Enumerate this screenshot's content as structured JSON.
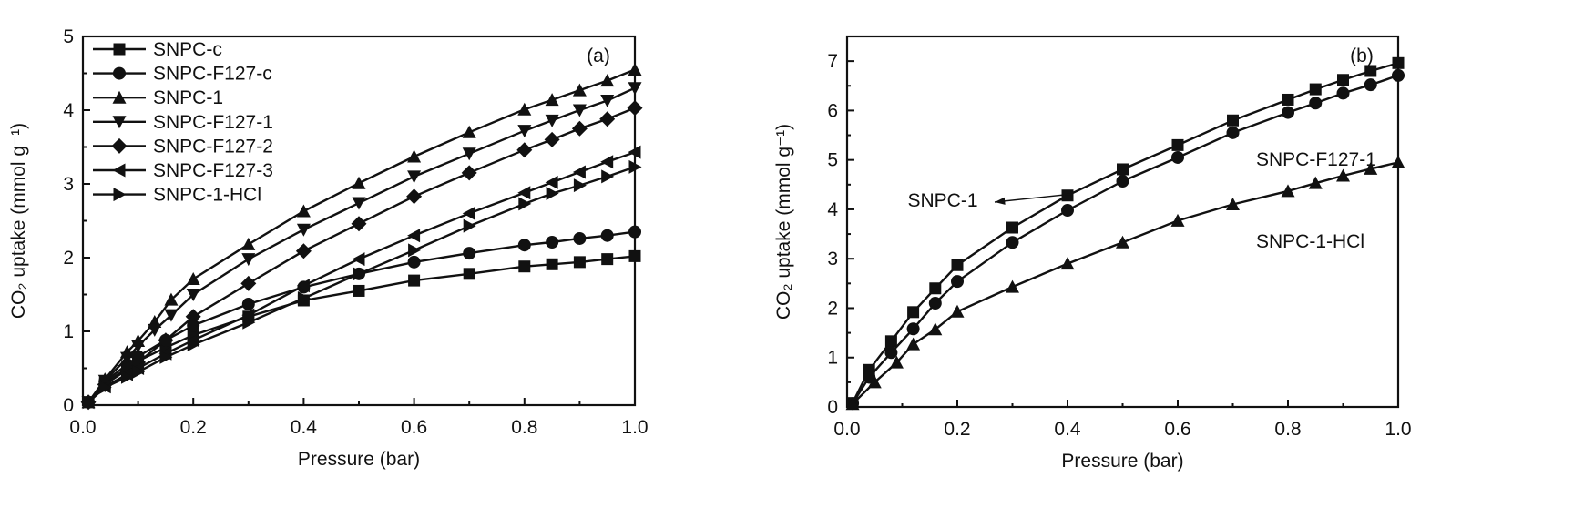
{
  "figure": {
    "panels": [
      "(a)",
      "(b)"
    ]
  },
  "chart_data": [
    {
      "type": "line",
      "panel_label": "(a)",
      "xlabel": "Pressure (bar)",
      "ylabel": "CO₂ uptake (mmol g⁻¹)",
      "xlim": [
        0.0,
        1.0
      ],
      "ylim": [
        0,
        5
      ],
      "xticks": [
        "0.0",
        "0.2",
        "0.4",
        "0.6",
        "0.8",
        "1.0"
      ],
      "yticks": [
        "0",
        "1",
        "2",
        "3",
        "4",
        "5"
      ],
      "legend_position": "top-left",
      "series": [
        {
          "name": "SNPC-c",
          "marker": "square",
          "x": [
            0.01,
            0.04,
            0.08,
            0.1,
            0.15,
            0.2,
            0.3,
            0.4,
            0.5,
            0.6,
            0.7,
            0.8,
            0.85,
            0.9,
            0.95,
            1.0
          ],
          "y": [
            0.04,
            0.3,
            0.5,
            0.6,
            0.78,
            0.95,
            1.2,
            1.42,
            1.55,
            1.69,
            1.78,
            1.88,
            1.91,
            1.94,
            1.98,
            2.02
          ]
        },
        {
          "name": "SNPC-F127-c",
          "marker": "circle",
          "x": [
            0.01,
            0.04,
            0.08,
            0.1,
            0.15,
            0.2,
            0.3,
            0.4,
            0.5,
            0.6,
            0.7,
            0.8,
            0.85,
            0.9,
            0.95,
            1.0
          ],
          "y": [
            0.04,
            0.32,
            0.55,
            0.66,
            0.88,
            1.08,
            1.37,
            1.6,
            1.78,
            1.94,
            2.06,
            2.17,
            2.21,
            2.26,
            2.3,
            2.35
          ]
        },
        {
          "name": "SNPC-1",
          "marker": "triangle-up",
          "x": [
            0.01,
            0.04,
            0.08,
            0.1,
            0.13,
            0.16,
            0.2,
            0.3,
            0.4,
            0.5,
            0.6,
            0.7,
            0.8,
            0.85,
            0.9,
            0.95,
            1.0
          ],
          "y": [
            0.04,
            0.35,
            0.72,
            0.87,
            1.13,
            1.43,
            1.71,
            2.18,
            2.63,
            3.01,
            3.37,
            3.7,
            4.01,
            4.14,
            4.27,
            4.4,
            4.55
          ]
        },
        {
          "name": "SNPC-F127-1",
          "marker": "triangle-down",
          "x": [
            0.01,
            0.04,
            0.08,
            0.1,
            0.13,
            0.16,
            0.2,
            0.3,
            0.4,
            0.5,
            0.6,
            0.7,
            0.8,
            0.85,
            0.9,
            0.95,
            1.0
          ],
          "y": [
            0.04,
            0.33,
            0.64,
            0.8,
            1.02,
            1.22,
            1.5,
            1.98,
            2.38,
            2.74,
            3.1,
            3.41,
            3.72,
            3.86,
            4.0,
            4.13,
            4.3
          ]
        },
        {
          "name": "SNPC-F127-2",
          "marker": "diamond",
          "x": [
            0.01,
            0.04,
            0.08,
            0.1,
            0.15,
            0.2,
            0.3,
            0.4,
            0.5,
            0.6,
            0.7,
            0.8,
            0.85,
            0.9,
            0.95,
            1.0
          ],
          "y": [
            0.04,
            0.28,
            0.48,
            0.58,
            0.88,
            1.2,
            1.65,
            2.09,
            2.46,
            2.83,
            3.15,
            3.46,
            3.6,
            3.75,
            3.88,
            4.03
          ]
        },
        {
          "name": "SNPC-F127-3",
          "marker": "triangle-left",
          "x": [
            0.01,
            0.04,
            0.08,
            0.1,
            0.15,
            0.2,
            0.3,
            0.4,
            0.5,
            0.6,
            0.7,
            0.8,
            0.85,
            0.9,
            0.95,
            1.0
          ],
          "y": [
            0.04,
            0.25,
            0.42,
            0.5,
            0.7,
            0.88,
            1.22,
            1.62,
            1.98,
            2.3,
            2.6,
            2.88,
            3.02,
            3.16,
            3.3,
            3.43
          ]
        },
        {
          "name": "SNPC-1-HCl",
          "marker": "triangle-right",
          "x": [
            0.01,
            0.04,
            0.08,
            0.1,
            0.15,
            0.2,
            0.3,
            0.4,
            0.5,
            0.6,
            0.7,
            0.8,
            0.85,
            0.9,
            0.95,
            1.0
          ],
          "y": [
            0.04,
            0.24,
            0.38,
            0.45,
            0.65,
            0.82,
            1.12,
            1.45,
            1.78,
            2.1,
            2.43,
            2.73,
            2.87,
            2.98,
            3.1,
            3.23
          ]
        }
      ]
    },
    {
      "type": "line",
      "panel_label": "(b)",
      "xlabel": "Pressure (bar)",
      "ylabel": "CO₂ uptake (mmol g⁻¹)",
      "xlim": [
        0.0,
        1.0
      ],
      "ylim": [
        0,
        7.5
      ],
      "xticks": [
        "0.0",
        "0.2",
        "0.4",
        "0.6",
        "0.8",
        "1.0"
      ],
      "yticks": [
        "0",
        "1",
        "2",
        "3",
        "4",
        "5",
        "6",
        "7"
      ],
      "series": [
        {
          "name": "SNPC-1",
          "marker": "square",
          "x": [
            0.01,
            0.04,
            0.08,
            0.12,
            0.16,
            0.2,
            0.3,
            0.4,
            0.5,
            0.6,
            0.7,
            0.8,
            0.85,
            0.9,
            0.95,
            1.0
          ],
          "y": [
            0.08,
            0.75,
            1.33,
            1.92,
            2.4,
            2.87,
            3.63,
            4.28,
            4.81,
            5.3,
            5.8,
            6.22,
            6.43,
            6.62,
            6.8,
            6.96
          ]
        },
        {
          "name": "SNPC-F127-1",
          "marker": "circle",
          "x": [
            0.01,
            0.04,
            0.08,
            0.12,
            0.16,
            0.2,
            0.3,
            0.4,
            0.5,
            0.6,
            0.7,
            0.8,
            0.85,
            0.9,
            0.95,
            1.0
          ],
          "y": [
            0.07,
            0.6,
            1.1,
            1.58,
            2.1,
            2.54,
            3.33,
            3.98,
            4.57,
            5.05,
            5.55,
            5.96,
            6.15,
            6.35,
            6.52,
            6.71
          ]
        },
        {
          "name": "SNPC-1-HCl",
          "marker": "triangle-up",
          "x": [
            0.01,
            0.05,
            0.09,
            0.12,
            0.16,
            0.2,
            0.3,
            0.4,
            0.5,
            0.6,
            0.7,
            0.8,
            0.85,
            0.9,
            0.95,
            1.0
          ],
          "y": [
            0.06,
            0.5,
            0.9,
            1.27,
            1.57,
            1.93,
            2.43,
            2.9,
            3.33,
            3.77,
            4.1,
            4.37,
            4.53,
            4.68,
            4.82,
            4.95
          ]
        }
      ],
      "annotations": [
        {
          "text": "SNPC-1",
          "series": "SNPC-1",
          "arrow": true
        },
        {
          "text": "SNPC-F127-1",
          "series": "SNPC-F127-1"
        },
        {
          "text": "SNPC-1-HCl",
          "series": "SNPC-1-HCl"
        }
      ]
    }
  ]
}
